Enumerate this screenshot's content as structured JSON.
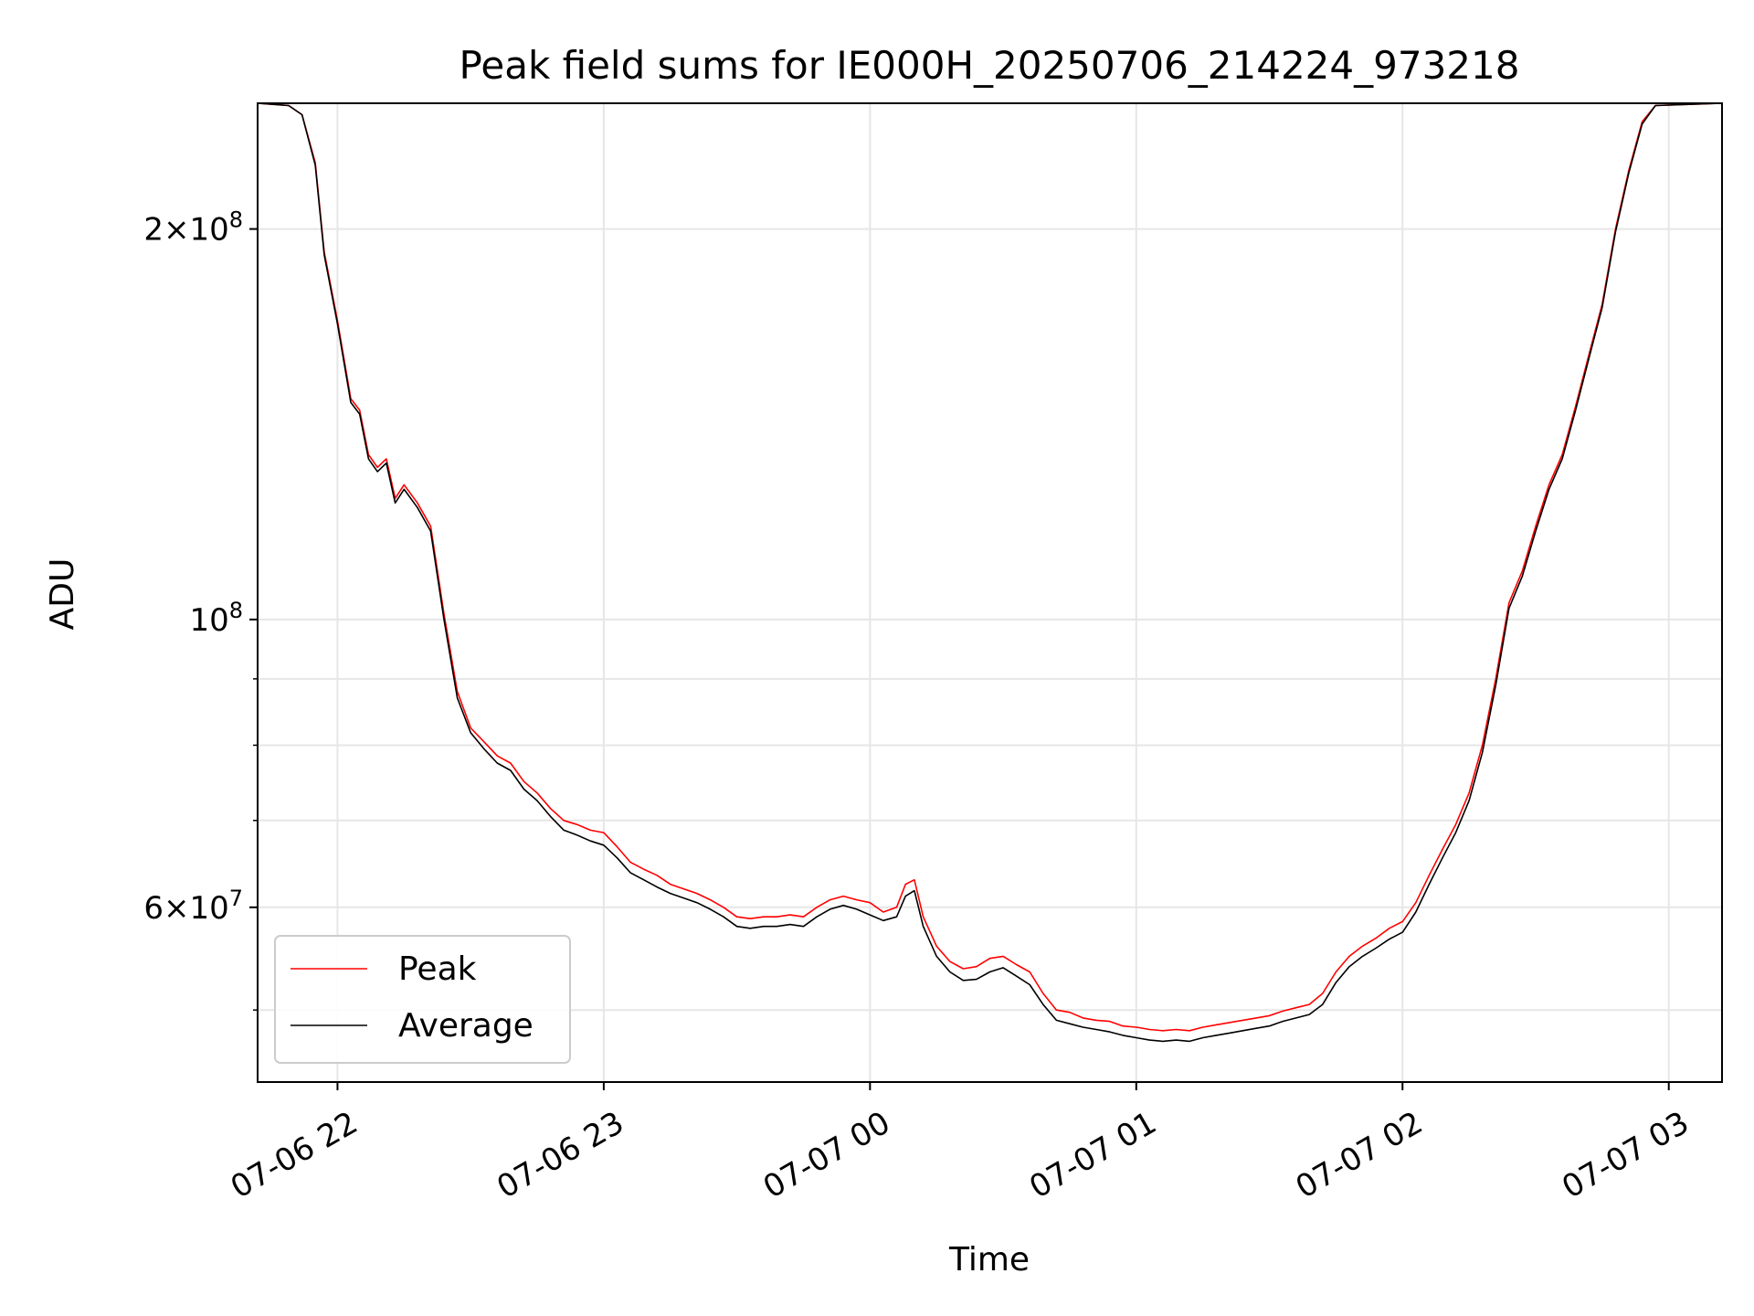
{
  "chart_data": {
    "type": "line",
    "title": "Peak field sums for IE000H_20250706_214224_973218",
    "xlabel": "Time",
    "ylabel": "ADU",
    "y_scale": "log",
    "ylim": [
      44000000,
      250000000
    ],
    "xlim": [
      "2025-07-06 21:42",
      "2025-07-07 03:12"
    ],
    "grid": true,
    "legend_position": "lower-left",
    "x_ticks": [
      {
        "value": "2025-07-06 22:00",
        "label": "07-06 22"
      },
      {
        "value": "2025-07-06 23:00",
        "label": "07-06 23"
      },
      {
        "value": "2025-07-07 00:00",
        "label": "07-07 00"
      },
      {
        "value": "2025-07-07 01:00",
        "label": "07-07 01"
      },
      {
        "value": "2025-07-07 02:00",
        "label": "07-07 02"
      },
      {
        "value": "2025-07-07 03:00",
        "label": "07-07 03"
      }
    ],
    "y_ticks": [
      {
        "value": 60000000,
        "base": "6",
        "exp": "7"
      },
      {
        "value": 100000000,
        "base": "",
        "exp": "8"
      },
      {
        "value": 200000000,
        "base": "2",
        "exp": "8"
      }
    ],
    "y_minor_ticks": [
      50000000,
      70000000,
      80000000,
      90000000
    ],
    "series": [
      {
        "name": "Peak",
        "color": "#ff0000",
        "points": [
          [
            "2025-07-06 21:42",
            250000000
          ],
          [
            "2025-07-06 21:49",
            249000000
          ],
          [
            "2025-07-06 21:52",
            245000000
          ],
          [
            "2025-07-06 21:55",
            225000000
          ],
          [
            "2025-07-06 21:57",
            192000000
          ],
          [
            "2025-07-06 22:00",
            170000000
          ],
          [
            "2025-07-06 22:03",
            148000000
          ],
          [
            "2025-07-06 22:05",
            145000000
          ],
          [
            "2025-07-06 22:07",
            134000000
          ],
          [
            "2025-07-06 22:09",
            131000000
          ],
          [
            "2025-07-06 22:11",
            133000000
          ],
          [
            "2025-07-06 22:13",
            124000000
          ],
          [
            "2025-07-06 22:15",
            127000000
          ],
          [
            "2025-07-06 22:18",
            123000000
          ],
          [
            "2025-07-06 22:21",
            118000000
          ],
          [
            "2025-07-06 22:24",
            101000000
          ],
          [
            "2025-07-06 22:27",
            88000000
          ],
          [
            "2025-07-06 22:30",
            82500000
          ],
          [
            "2025-07-06 22:33",
            80500000
          ],
          [
            "2025-07-06 22:36",
            78500000
          ],
          [
            "2025-07-06 22:39",
            77500000
          ],
          [
            "2025-07-06 22:42",
            75000000
          ],
          [
            "2025-07-06 22:45",
            73500000
          ],
          [
            "2025-07-06 22:48",
            71500000
          ],
          [
            "2025-07-06 22:51",
            70000000
          ],
          [
            "2025-07-06 22:54",
            69500000
          ],
          [
            "2025-07-06 22:57",
            68800000
          ],
          [
            "2025-07-06 23:00",
            68500000
          ],
          [
            "2025-07-06 23:03",
            66800000
          ],
          [
            "2025-07-06 23:06",
            65000000
          ],
          [
            "2025-07-06 23:09",
            64200000
          ],
          [
            "2025-07-06 23:12",
            63500000
          ],
          [
            "2025-07-06 23:15",
            62500000
          ],
          [
            "2025-07-06 23:18",
            62000000
          ],
          [
            "2025-07-06 23:21",
            61500000
          ],
          [
            "2025-07-06 23:24",
            60800000
          ],
          [
            "2025-07-06 23:27",
            60000000
          ],
          [
            "2025-07-06 23:30",
            59000000
          ],
          [
            "2025-07-06 23:33",
            58800000
          ],
          [
            "2025-07-06 23:36",
            59000000
          ],
          [
            "2025-07-06 23:39",
            59000000
          ],
          [
            "2025-07-06 23:42",
            59200000
          ],
          [
            "2025-07-06 23:45",
            59000000
          ],
          [
            "2025-07-06 23:48",
            60000000
          ],
          [
            "2025-07-06 23:51",
            60800000
          ],
          [
            "2025-07-06 23:54",
            61200000
          ],
          [
            "2025-07-06 23:57",
            60800000
          ],
          [
            "2025-07-07 00:00",
            60500000
          ],
          [
            "2025-07-07 00:03",
            59500000
          ],
          [
            "2025-07-07 00:06",
            60000000
          ],
          [
            "2025-07-07 00:08",
            62500000
          ],
          [
            "2025-07-07 00:10",
            63000000
          ],
          [
            "2025-07-07 00:12",
            59000000
          ],
          [
            "2025-07-07 00:15",
            56000000
          ],
          [
            "2025-07-07 00:18",
            54500000
          ],
          [
            "2025-07-07 00:21",
            53800000
          ],
          [
            "2025-07-07 00:24",
            54000000
          ],
          [
            "2025-07-07 00:27",
            54800000
          ],
          [
            "2025-07-07 00:30",
            55000000
          ],
          [
            "2025-07-07 00:33",
            54200000
          ],
          [
            "2025-07-07 00:36",
            53500000
          ],
          [
            "2025-07-07 00:39",
            51500000
          ],
          [
            "2025-07-07 00:42",
            50000000
          ],
          [
            "2025-07-07 00:45",
            49800000
          ],
          [
            "2025-07-07 00:48",
            49300000
          ],
          [
            "2025-07-07 00:51",
            49100000
          ],
          [
            "2025-07-07 00:54",
            49000000
          ],
          [
            "2025-07-07 00:57",
            48600000
          ],
          [
            "2025-07-07 01:00",
            48500000
          ],
          [
            "2025-07-07 01:03",
            48300000
          ],
          [
            "2025-07-07 01:06",
            48200000
          ],
          [
            "2025-07-07 01:09",
            48300000
          ],
          [
            "2025-07-07 01:12",
            48200000
          ],
          [
            "2025-07-07 01:15",
            48500000
          ],
          [
            "2025-07-07 01:18",
            48700000
          ],
          [
            "2025-07-07 01:21",
            48900000
          ],
          [
            "2025-07-07 01:24",
            49100000
          ],
          [
            "2025-07-07 01:27",
            49300000
          ],
          [
            "2025-07-07 01:30",
            49500000
          ],
          [
            "2025-07-07 01:33",
            49900000
          ],
          [
            "2025-07-07 01:36",
            50200000
          ],
          [
            "2025-07-07 01:39",
            50500000
          ],
          [
            "2025-07-07 01:42",
            51500000
          ],
          [
            "2025-07-07 01:45",
            53500000
          ],
          [
            "2025-07-07 01:48",
            55000000
          ],
          [
            "2025-07-07 01:51",
            56000000
          ],
          [
            "2025-07-07 01:54",
            56800000
          ],
          [
            "2025-07-07 01:57",
            57800000
          ],
          [
            "2025-07-07 02:00",
            58500000
          ],
          [
            "2025-07-07 02:03",
            60500000
          ],
          [
            "2025-07-07 02:06",
            63500000
          ],
          [
            "2025-07-07 02:09",
            66500000
          ],
          [
            "2025-07-07 02:12",
            69500000
          ],
          [
            "2025-07-07 02:15",
            73500000
          ],
          [
            "2025-07-07 02:18",
            80000000
          ],
          [
            "2025-07-07 02:21",
            90000000
          ],
          [
            "2025-07-07 02:24",
            103000000
          ],
          [
            "2025-07-07 02:27",
            109000000
          ],
          [
            "2025-07-07 02:30",
            118000000
          ],
          [
            "2025-07-07 02:33",
            127000000
          ],
          [
            "2025-07-07 02:36",
            134000000
          ],
          [
            "2025-07-07 02:39",
            146000000
          ],
          [
            "2025-07-07 02:42",
            160000000
          ],
          [
            "2025-07-07 02:45",
            175000000
          ],
          [
            "2025-07-07 02:48",
            200000000
          ],
          [
            "2025-07-07 02:51",
            222000000
          ],
          [
            "2025-07-07 02:54",
            242000000
          ],
          [
            "2025-07-07 02:57",
            249000000
          ],
          [
            "2025-07-07 03:12",
            250000000
          ]
        ]
      },
      {
        "name": "Average",
        "color": "#000000",
        "points": [
          [
            "2025-07-06 21:42",
            250000000
          ],
          [
            "2025-07-06 21:49",
            249000000
          ],
          [
            "2025-07-06 21:52",
            245000000
          ],
          [
            "2025-07-06 21:55",
            224000000
          ],
          [
            "2025-07-06 21:57",
            191000000
          ],
          [
            "2025-07-06 22:00",
            169000000
          ],
          [
            "2025-07-06 22:03",
            147000000
          ],
          [
            "2025-07-06 22:05",
            144000000
          ],
          [
            "2025-07-06 22:07",
            133000000
          ],
          [
            "2025-07-06 22:09",
            130000000
          ],
          [
            "2025-07-06 22:11",
            132000000
          ],
          [
            "2025-07-06 22:13",
            123000000
          ],
          [
            "2025-07-06 22:15",
            126000000
          ],
          [
            "2025-07-06 22:18",
            122000000
          ],
          [
            "2025-07-06 22:21",
            117000000
          ],
          [
            "2025-07-06 22:24",
            100000000
          ],
          [
            "2025-07-06 22:27",
            87000000
          ],
          [
            "2025-07-06 22:30",
            81800000
          ],
          [
            "2025-07-06 22:33",
            79500000
          ],
          [
            "2025-07-06 22:36",
            77500000
          ],
          [
            "2025-07-06 22:39",
            76500000
          ],
          [
            "2025-07-06 22:42",
            74000000
          ],
          [
            "2025-07-06 22:45",
            72500000
          ],
          [
            "2025-07-06 22:48",
            70500000
          ],
          [
            "2025-07-06 22:51",
            68800000
          ],
          [
            "2025-07-06 22:54",
            68200000
          ],
          [
            "2025-07-06 22:57",
            67500000
          ],
          [
            "2025-07-06 23:00",
            67000000
          ],
          [
            "2025-07-06 23:03",
            65500000
          ],
          [
            "2025-07-06 23:06",
            63800000
          ],
          [
            "2025-07-06 23:09",
            63000000
          ],
          [
            "2025-07-06 23:12",
            62200000
          ],
          [
            "2025-07-06 23:15",
            61500000
          ],
          [
            "2025-07-06 23:18",
            61000000
          ],
          [
            "2025-07-06 23:21",
            60500000
          ],
          [
            "2025-07-06 23:24",
            59800000
          ],
          [
            "2025-07-06 23:27",
            59000000
          ],
          [
            "2025-07-06 23:30",
            58000000
          ],
          [
            "2025-07-06 23:33",
            57800000
          ],
          [
            "2025-07-06 23:36",
            58000000
          ],
          [
            "2025-07-06 23:39",
            58000000
          ],
          [
            "2025-07-06 23:42",
            58200000
          ],
          [
            "2025-07-06 23:45",
            58000000
          ],
          [
            "2025-07-06 23:48",
            59000000
          ],
          [
            "2025-07-06 23:51",
            59800000
          ],
          [
            "2025-07-06 23:54",
            60200000
          ],
          [
            "2025-07-06 23:57",
            59800000
          ],
          [
            "2025-07-07 00:00",
            59200000
          ],
          [
            "2025-07-07 00:03",
            58600000
          ],
          [
            "2025-07-07 00:06",
            59000000
          ],
          [
            "2025-07-07 00:08",
            61200000
          ],
          [
            "2025-07-07 00:10",
            61800000
          ],
          [
            "2025-07-07 00:12",
            58000000
          ],
          [
            "2025-07-07 00:15",
            55000000
          ],
          [
            "2025-07-07 00:18",
            53500000
          ],
          [
            "2025-07-07 00:21",
            52700000
          ],
          [
            "2025-07-07 00:24",
            52800000
          ],
          [
            "2025-07-07 00:27",
            53500000
          ],
          [
            "2025-07-07 00:30",
            53900000
          ],
          [
            "2025-07-07 00:33",
            53100000
          ],
          [
            "2025-07-07 00:36",
            52300000
          ],
          [
            "2025-07-07 00:39",
            50500000
          ],
          [
            "2025-07-07 00:42",
            49100000
          ],
          [
            "2025-07-07 00:45",
            48800000
          ],
          [
            "2025-07-07 00:48",
            48500000
          ],
          [
            "2025-07-07 00:51",
            48300000
          ],
          [
            "2025-07-07 00:54",
            48100000
          ],
          [
            "2025-07-07 00:57",
            47800000
          ],
          [
            "2025-07-07 01:00",
            47600000
          ],
          [
            "2025-07-07 01:03",
            47400000
          ],
          [
            "2025-07-07 01:06",
            47300000
          ],
          [
            "2025-07-07 01:09",
            47400000
          ],
          [
            "2025-07-07 01:12",
            47300000
          ],
          [
            "2025-07-07 01:15",
            47600000
          ],
          [
            "2025-07-07 01:18",
            47800000
          ],
          [
            "2025-07-07 01:21",
            48000000
          ],
          [
            "2025-07-07 01:24",
            48200000
          ],
          [
            "2025-07-07 01:27",
            48400000
          ],
          [
            "2025-07-07 01:30",
            48600000
          ],
          [
            "2025-07-07 01:33",
            49000000
          ],
          [
            "2025-07-07 01:36",
            49300000
          ],
          [
            "2025-07-07 01:39",
            49600000
          ],
          [
            "2025-07-07 01:42",
            50500000
          ],
          [
            "2025-07-07 01:45",
            52500000
          ],
          [
            "2025-07-07 01:48",
            54000000
          ],
          [
            "2025-07-07 01:51",
            55000000
          ],
          [
            "2025-07-07 01:54",
            55800000
          ],
          [
            "2025-07-07 01:57",
            56700000
          ],
          [
            "2025-07-07 02:00",
            57400000
          ],
          [
            "2025-07-07 02:03",
            59500000
          ],
          [
            "2025-07-07 02:06",
            62500000
          ],
          [
            "2025-07-07 02:09",
            65500000
          ],
          [
            "2025-07-07 02:12",
            68500000
          ],
          [
            "2025-07-07 02:15",
            72500000
          ],
          [
            "2025-07-07 02:18",
            79000000
          ],
          [
            "2025-07-07 02:21",
            89000000
          ],
          [
            "2025-07-07 02:24",
            102000000
          ],
          [
            "2025-07-07 02:27",
            108000000
          ],
          [
            "2025-07-07 02:30",
            117000000
          ],
          [
            "2025-07-07 02:33",
            126000000
          ],
          [
            "2025-07-07 02:36",
            133000000
          ],
          [
            "2025-07-07 02:39",
            145000000
          ],
          [
            "2025-07-07 02:42",
            159000000
          ],
          [
            "2025-07-07 02:45",
            174000000
          ],
          [
            "2025-07-07 02:48",
            199000000
          ],
          [
            "2025-07-07 02:51",
            221000000
          ],
          [
            "2025-07-07 02:54",
            241000000
          ],
          [
            "2025-07-07 02:57",
            249000000
          ],
          [
            "2025-07-07 03:12",
            250000000
          ]
        ]
      }
    ]
  }
}
